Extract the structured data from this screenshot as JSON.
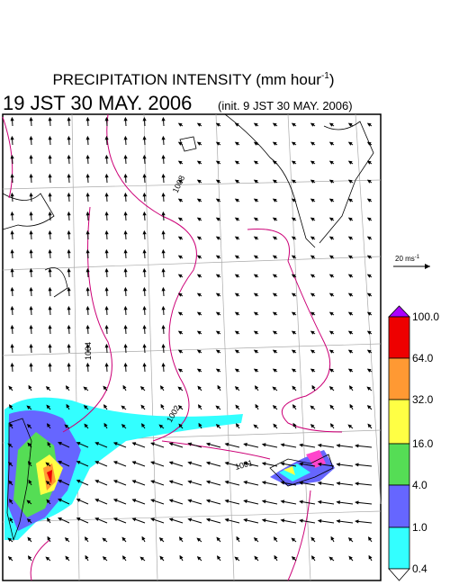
{
  "header": {
    "title": "PRECIPITATION INTENSITY (mm hour",
    "title_superscript": "-1",
    "title_close": ")",
    "time": "19 JST 30 MAY. 2006",
    "init": "(init. 9 JST 30 MAY. 2006)"
  },
  "vector_scale": {
    "label": "20 ms",
    "superscript": "-1"
  },
  "isobar_labels": [
    "1008",
    "1004",
    "1002",
    "1001"
  ],
  "colorbar": {
    "labels": [
      "100.0",
      "64.0",
      "32.0",
      "16.0",
      "4.0",
      "1.0",
      "0.4"
    ]
  }
}
